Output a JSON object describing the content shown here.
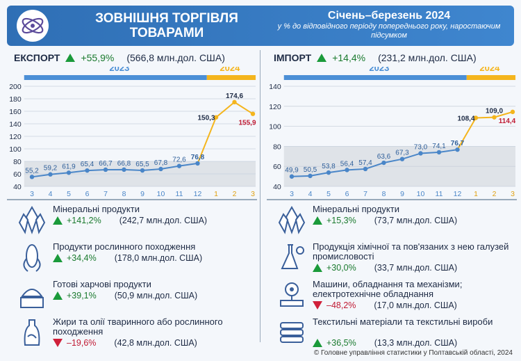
{
  "header": {
    "title": "ЗОВНІШНЯ ТОРГІВЛЯ ТОВАРАМИ",
    "period": "Січень–березень 2024",
    "subtitle": "у % до відповідного періоду попереднього року, наростаючим підсумком"
  },
  "export": {
    "label": "ЕКСПОРТ",
    "change": "+55,9%",
    "total": "(566,8 млн.дол. США)",
    "items": [
      {
        "name": "Мінеральні продукти",
        "change": "+141,2%",
        "dir": "up",
        "value": "(242,7 млн.дол. США)",
        "icon": "crystals-icon"
      },
      {
        "name": "Продукти рослинного походження",
        "change": "+34,4%",
        "dir": "up",
        "value": "(178,0 млн.дол. США)",
        "icon": "corn-icon"
      },
      {
        "name": "Готові харчові продукти",
        "change": "+39,1%",
        "dir": "up",
        "value": "(50,9 млн.дол. США)",
        "icon": "food-icon"
      },
      {
        "name": "Жири та олії тваринного або рослинного походження",
        "change": "–19,6%",
        "dir": "down",
        "value": "(42,8 млн.дол. США)",
        "icon": "oil-bottle-icon"
      }
    ]
  },
  "import": {
    "label": "ІМПОРТ",
    "change": "+14,4%",
    "total": "(231,2 млн.дол. США)",
    "items": [
      {
        "name": "Мінеральні продукти",
        "change": "+15,3%",
        "dir": "up",
        "value": "(73,7 млн.дол. США)",
        "icon": "crystals-icon"
      },
      {
        "name": "Продукція хімічної та пов'язаних з нею галузей промисловості",
        "change": "+30,0%",
        "dir": "up",
        "value": "(33,7 млн.дол. США)",
        "icon": "chemistry-icon"
      },
      {
        "name": "Машини, обладнання та механізми; електротехнічне обладнання",
        "change": "–48,2%",
        "dir": "down",
        "value": "(17,0 млн.дол. США)",
        "icon": "machine-icon"
      },
      {
        "name": "Текстильні матеріали та текстильні вироби",
        "change": "+36,5%",
        "dir": "up",
        "value": "(13,3 млн.дол. США)",
        "icon": "textile-icon"
      }
    ]
  },
  "footer": "© Головне управління статистики у Полтавській області, 2024",
  "colors": {
    "y2023": "#4b8fd6",
    "y2024": "#f4b51d",
    "line2023": "#4a86c8",
    "line2024": "#f4b51d",
    "up": "#1a9a3a",
    "down": "#d0203a"
  },
  "chart_data": [
    {
      "type": "line",
      "title": "ЕКСПОРТ",
      "year_bands": [
        "2023",
        "2024"
      ],
      "x": [
        "3",
        "4",
        "5",
        "6",
        "7",
        "8",
        "9",
        "10",
        "11",
        "12",
        "1",
        "2",
        "3"
      ],
      "values": [
        55.2,
        59.2,
        61.9,
        65.4,
        66.7,
        66.8,
        65.5,
        67.8,
        72.6,
        76.8,
        150.3,
        174.6,
        155.9
      ],
      "labels": [
        "55,2",
        "59,2",
        "61,9",
        "65,4",
        "66,7",
        "66,8",
        "65,5",
        "67,8",
        "72,6",
        "76,8",
        "150,3",
        "174,6",
        "155,9"
      ],
      "yticks": [
        40,
        60,
        80,
        100,
        120,
        140,
        160,
        180,
        200
      ],
      "ylim": [
        40,
        200
      ]
    },
    {
      "type": "line",
      "title": "ІМПОРТ",
      "year_bands": [
        "2023",
        "2024"
      ],
      "x": [
        "3",
        "4",
        "5",
        "6",
        "7",
        "8",
        "9",
        "10",
        "11",
        "12",
        "1",
        "2",
        "3"
      ],
      "values": [
        49.9,
        50.5,
        53.8,
        56.4,
        57.4,
        63.6,
        67.3,
        73.0,
        74.1,
        76.7,
        108.4,
        109.0,
        114.4
      ],
      "labels": [
        "49,9",
        "50,5",
        "53,8",
        "56,4",
        "57,4",
        "63,6",
        "67,3",
        "73,0",
        "74,1",
        "76,7",
        "108,4",
        "109,0",
        "114,4"
      ],
      "yticks": [
        40,
        60,
        80,
        100,
        120,
        140
      ],
      "ylim": [
        40,
        140
      ]
    }
  ]
}
